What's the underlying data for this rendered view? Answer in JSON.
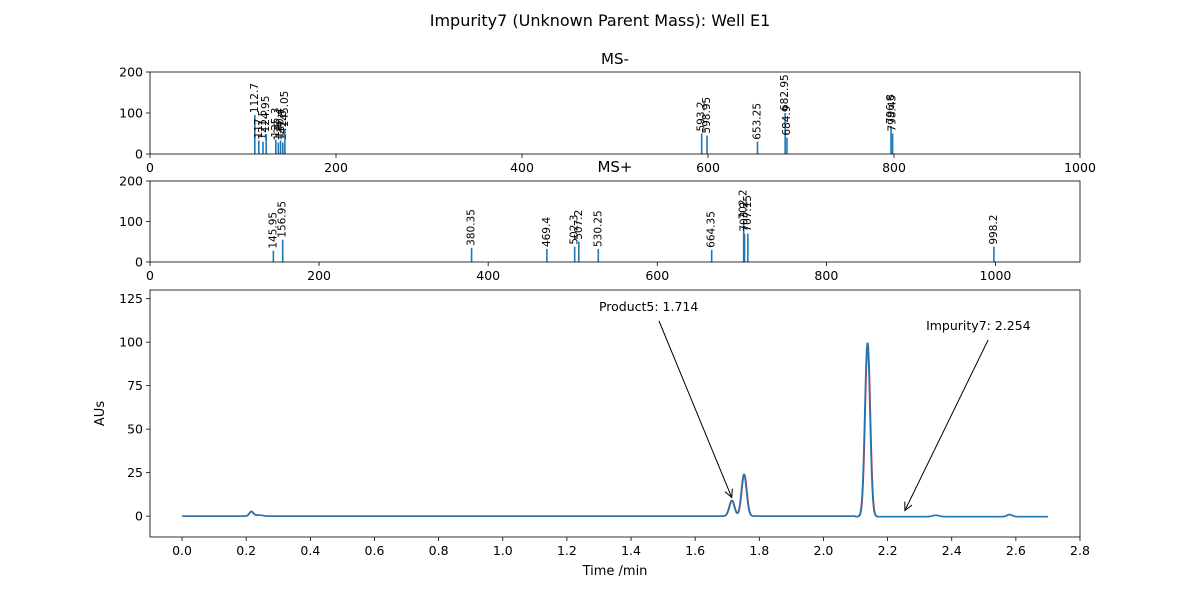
{
  "title": "Impurity7 (Unknown Parent Mass): Well E1",
  "chart_data": [
    {
      "type": "bar",
      "title": "MS-",
      "xlim": [
        0,
        1000
      ],
      "ylim": [
        0,
        200
      ],
      "xticks": [
        "0",
        "200",
        "400",
        "600",
        "800",
        "1000"
      ],
      "yticks": [
        "0",
        "100",
        "200"
      ],
      "color": "#1f77b4",
      "peaks": [
        {
          "x": 112.7,
          "y": 95,
          "label": "112.7"
        },
        {
          "x": 117.0,
          "y": 33,
          "label": "117"
        },
        {
          "x": 121.5,
          "y": 30,
          "label": "121.5"
        },
        {
          "x": 124.95,
          "y": 48,
          "label": "124.95"
        },
        {
          "x": 135.3,
          "y": 35,
          "label": "135.3"
        },
        {
          "x": 138.0,
          "y": 28,
          "label": "138"
        },
        {
          "x": 140.4,
          "y": 33,
          "label": "140.4"
        },
        {
          "x": 142.8,
          "y": 28,
          "label": "142.8"
        },
        {
          "x": 145.05,
          "y": 60,
          "label": "145.05"
        },
        {
          "x": 593.2,
          "y": 50,
          "label": "593.2"
        },
        {
          "x": 598.95,
          "y": 45,
          "label": "598.95"
        },
        {
          "x": 653.25,
          "y": 30,
          "label": "653.25"
        },
        {
          "x": 682.95,
          "y": 100,
          "label": "682.95"
        },
        {
          "x": 684.9,
          "y": 40,
          "label": "684.9"
        },
        {
          "x": 796.8,
          "y": 68,
          "label": "796.8"
        },
        {
          "x": 798.45,
          "y": 50,
          "label": "798.45"
        }
      ]
    },
    {
      "type": "bar",
      "title": "MS+",
      "xlim": [
        0,
        1100
      ],
      "ylim": [
        0,
        200
      ],
      "xticks": [
        "0",
        "200",
        "400",
        "600",
        "800",
        "1000"
      ],
      "yticks": [
        "0",
        "100",
        "200"
      ],
      "color": "#1f77b4",
      "peaks": [
        {
          "x": 145.95,
          "y": 28,
          "label": "145.95"
        },
        {
          "x": 156.95,
          "y": 55,
          "label": "156.95"
        },
        {
          "x": 380.35,
          "y": 35,
          "label": "380.35"
        },
        {
          "x": 469.4,
          "y": 32,
          "label": "469.4"
        },
        {
          "x": 502.3,
          "y": 38,
          "label": "502.3"
        },
        {
          "x": 507.2,
          "y": 50,
          "label": "507.2"
        },
        {
          "x": 530.25,
          "y": 32,
          "label": "530.25"
        },
        {
          "x": 664.35,
          "y": 30,
          "label": "664.35"
        },
        {
          "x": 702.2,
          "y": 100,
          "label": "702.2"
        },
        {
          "x": 707.15,
          "y": 70,
          "label": "707.15"
        },
        {
          "x": 703.2,
          "y": 70,
          "label": "703.2"
        },
        {
          "x": 998.2,
          "y": 38,
          "label": "998.2"
        }
      ]
    },
    {
      "type": "line",
      "title": "",
      "xlabel": "Time /min",
      "ylabel": "AUs",
      "xlim": [
        -0.1,
        2.8
      ],
      "ylim": [
        -12,
        130
      ],
      "xticks": [
        "0.0",
        "0.2",
        "0.4",
        "0.6",
        "0.8",
        "1.0",
        "1.2",
        "1.4",
        "1.6",
        "1.8",
        "2.0",
        "2.2",
        "2.4",
        "2.6",
        "2.8"
      ],
      "yticks": [
        "0",
        "25",
        "50",
        "75",
        "100",
        "125"
      ],
      "series_colors": [
        "#d62728",
        "#1f77b4"
      ],
      "peaks": [
        {
          "x": 0.215,
          "y": 2.5,
          "w": 0.006
        },
        {
          "x": 1.714,
          "y": 9,
          "w": 0.008
        },
        {
          "x": 1.752,
          "y": 24,
          "w": 0.008
        },
        {
          "x": 2.137,
          "y": 100,
          "w": 0.008
        },
        {
          "x": 2.35,
          "y": 0.8,
          "w": 0.01
        },
        {
          "x": 2.58,
          "y": 1.2,
          "w": 0.008
        }
      ],
      "x_end": 2.7,
      "annotations": [
        {
          "text": "Product5: 1.714",
          "x": 1.714,
          "y": 9,
          "text_x": 1.3,
          "text_y": 118
        },
        {
          "text": "Impurity7: 2.254",
          "x": 2.254,
          "y": 1.5,
          "text_x": 2.32,
          "text_y": 107
        }
      ]
    }
  ]
}
